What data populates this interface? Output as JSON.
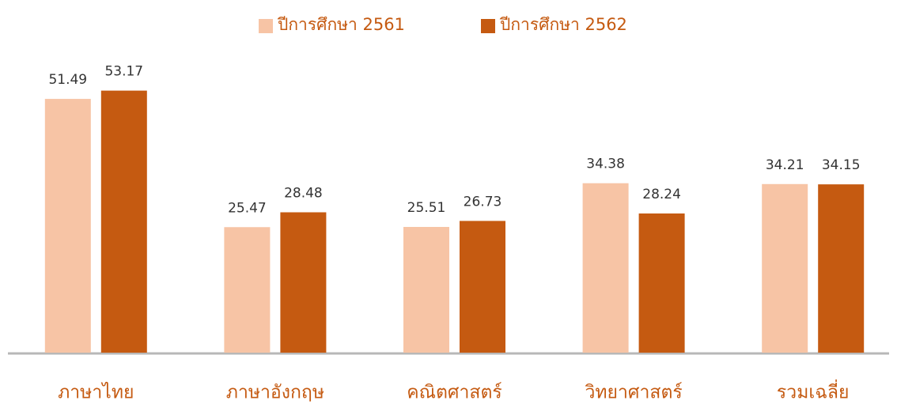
{
  "chart_data": {
    "type": "bar",
    "categories": [
      "ภาษาไทย",
      "ภาษาอังกฤษ",
      "คณิตศาสตร์",
      "วิทยาศาสตร์",
      "รวมเฉลี่ย"
    ],
    "series": [
      {
        "name": "ปีการศึกษา 2561",
        "color": "#f7c4a5",
        "values": [
          51.49,
          25.47,
          25.51,
          34.38,
          34.21
        ]
      },
      {
        "name": "ปีการศึกษา 2562",
        "color": "#c55a11",
        "values": [
          53.17,
          28.48,
          26.73,
          28.24,
          34.15
        ]
      }
    ],
    "ylim": [
      0,
      58
    ],
    "legend": "top",
    "grid": false
  }
}
